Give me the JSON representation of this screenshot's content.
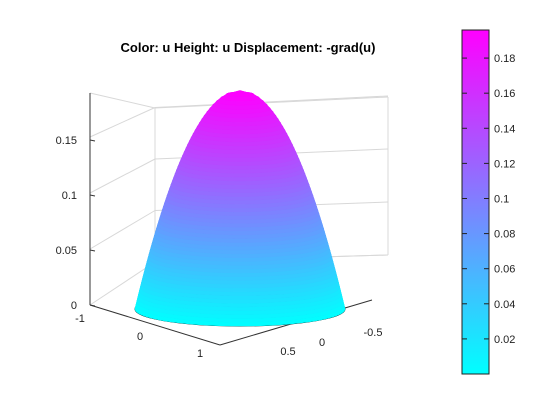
{
  "chart_data": {
    "type": "surface",
    "title": "Color: u  Height: u  Displacement: -grad(u)",
    "description_values": {
      "peak": 0.195,
      "base_radius": 1
    },
    "z_axis": {
      "ticks": [
        0,
        0.05,
        0.1,
        0.15
      ],
      "tick_labels": [
        "0",
        "0.05",
        "0.1",
        "0.15"
      ]
    },
    "x_axis": {
      "ticks": [
        -1,
        0,
        1
      ],
      "tick_labels": [
        "-1",
        "0",
        "1"
      ]
    },
    "y_axis": {
      "ticks": [
        0.5,
        0,
        -0.5
      ],
      "tick_labels": [
        "0.5",
        "0",
        "-0.5"
      ]
    },
    "colorbar": {
      "range": [
        0,
        0.196
      ],
      "ticks": [
        0.02,
        0.04,
        0.06,
        0.08,
        0.1,
        0.12,
        0.14,
        0.16,
        0.18
      ],
      "tick_labels": [
        "0.02",
        "0.04",
        "0.06",
        "0.08",
        "0.1",
        "0.12",
        "0.14",
        "0.16",
        "0.18"
      ],
      "colormap": "cool",
      "color_low": "#00ffff",
      "color_high": "#ff00ff"
    },
    "base_ring_count": 24,
    "grid": true
  }
}
